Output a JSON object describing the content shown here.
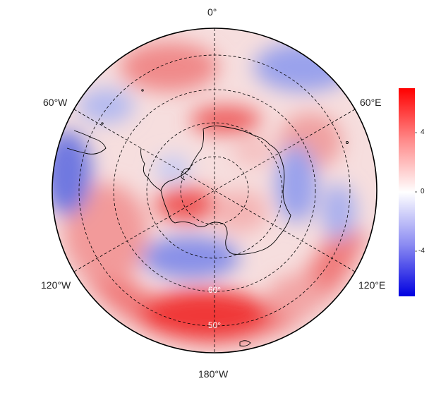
{
  "map": {
    "projection": "south polar stereographic",
    "longitude_labels": {
      "top": "0°",
      "upper_right": "60°E",
      "lower_right": "120°E",
      "bottom": "180°W",
      "lower_left": "120°W",
      "upper_left": "60°W"
    },
    "latitude_labels": [
      "60°",
      "50°"
    ],
    "gridlines": "dashed",
    "coastline_color": "#000000"
  },
  "colorbar": {
    "colormap": "blue-white-red",
    "low_color": "#0000e0",
    "mid_color": "#ffffff",
    "high_color": "#ff0000",
    "range": [
      -5.5,
      7
    ],
    "ticks": [
      "4",
      "0",
      "-4"
    ]
  },
  "colors": {
    "positive_anomaly": "#f0302e",
    "negative_anomaly": "#4a5ad8"
  }
}
